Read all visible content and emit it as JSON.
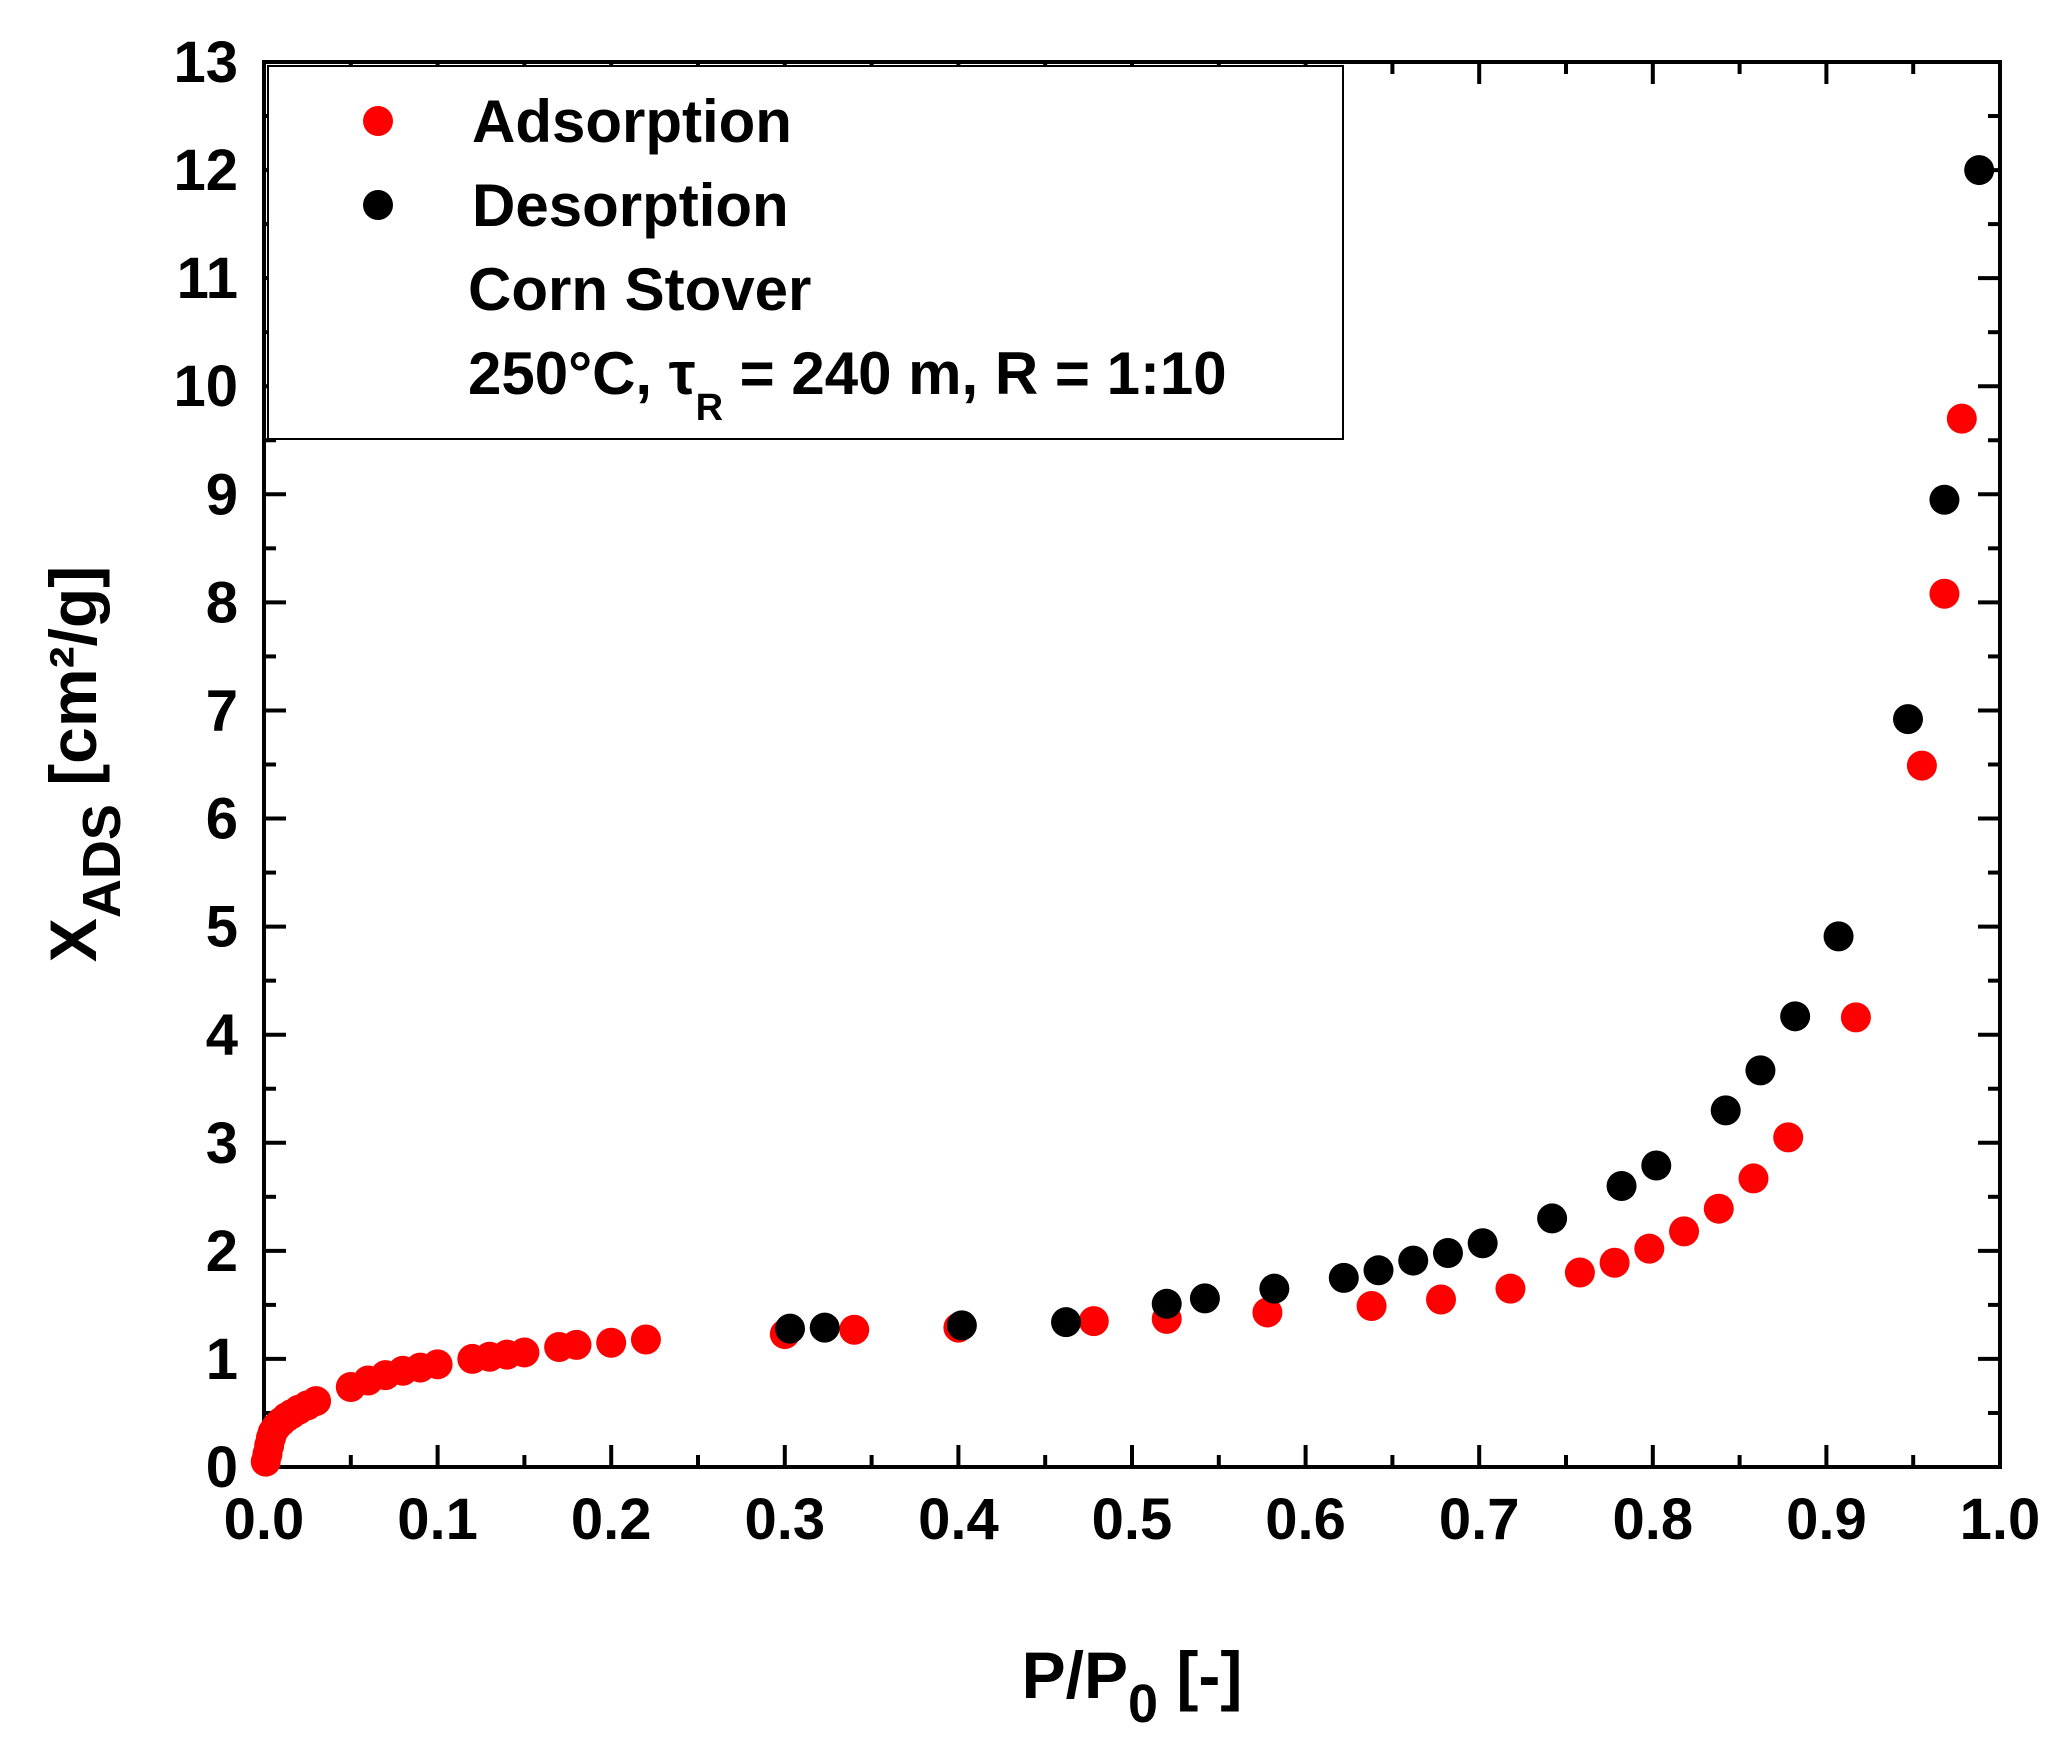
{
  "chart_data": {
    "type": "scatter",
    "title": "",
    "xlabel": {
      "main": "P/P",
      "sub": "0",
      "suffix": " [-]"
    },
    "ylabel": {
      "main": "X",
      "sub": "ADS",
      "suffix": " [cm²/g]"
    },
    "xlim": [
      0.0,
      1.0
    ],
    "ylim": [
      0,
      13
    ],
    "x_ticks": [
      0.0,
      0.1,
      0.2,
      0.3,
      0.4,
      0.5,
      0.6,
      0.7,
      0.8,
      0.9,
      1.0
    ],
    "x_tick_labels": [
      "0.0",
      "0.1",
      "0.2",
      "0.3",
      "0.4",
      "0.5",
      "0.6",
      "0.7",
      "0.8",
      "0.9",
      "1.0"
    ],
    "y_ticks": [
      0,
      1,
      2,
      3,
      4,
      5,
      6,
      7,
      8,
      9,
      10,
      11,
      12,
      13
    ],
    "y_tick_labels": [
      "0",
      "1",
      "2",
      "3",
      "4",
      "5",
      "6",
      "7",
      "8",
      "9",
      "10",
      "11",
      "12",
      "13"
    ],
    "grid": false,
    "legend_position": "top-left",
    "legend": {
      "entries": [
        "Adsorption",
        "Desorption"
      ],
      "note_line1": "Corn Stover",
      "note_line2_a": "250°C, τ",
      "note_line2_sub": "R",
      "note_line2_b": " = 240 m,  R = 1:10"
    },
    "series": [
      {
        "name": "Adsorption",
        "color": "#ff0000",
        "points": [
          [
            0.001,
            0.05
          ],
          [
            0.002,
            0.12
          ],
          [
            0.003,
            0.2
          ],
          [
            0.004,
            0.27
          ],
          [
            0.005,
            0.32
          ],
          [
            0.007,
            0.37
          ],
          [
            0.01,
            0.42
          ],
          [
            0.013,
            0.46
          ],
          [
            0.016,
            0.49
          ],
          [
            0.02,
            0.53
          ],
          [
            0.025,
            0.57
          ],
          [
            0.03,
            0.61
          ],
          [
            0.05,
            0.74
          ],
          [
            0.06,
            0.8
          ],
          [
            0.07,
            0.85
          ],
          [
            0.08,
            0.89
          ],
          [
            0.09,
            0.92
          ],
          [
            0.1,
            0.95
          ],
          [
            0.12,
            1.0
          ],
          [
            0.13,
            1.02
          ],
          [
            0.14,
            1.04
          ],
          [
            0.15,
            1.06
          ],
          [
            0.17,
            1.11
          ],
          [
            0.18,
            1.13
          ],
          [
            0.2,
            1.15
          ],
          [
            0.22,
            1.18
          ],
          [
            0.3,
            1.23
          ],
          [
            0.34,
            1.27
          ],
          [
            0.4,
            1.29
          ],
          [
            0.478,
            1.35
          ],
          [
            0.52,
            1.37
          ],
          [
            0.578,
            1.43
          ],
          [
            0.638,
            1.49
          ],
          [
            0.678,
            1.55
          ],
          [
            0.718,
            1.65
          ],
          [
            0.758,
            1.8
          ],
          [
            0.778,
            1.89
          ],
          [
            0.798,
            2.02
          ],
          [
            0.818,
            2.18
          ],
          [
            0.838,
            2.39
          ],
          [
            0.858,
            2.67
          ],
          [
            0.878,
            3.05
          ],
          [
            0.917,
            4.16
          ],
          [
            0.955,
            6.49
          ],
          [
            0.968,
            8.08
          ],
          [
            0.978,
            9.7
          ]
        ]
      },
      {
        "name": "Desorption",
        "color": "#000000",
        "points": [
          [
            0.303,
            1.28
          ],
          [
            0.323,
            1.29
          ],
          [
            0.402,
            1.31
          ],
          [
            0.462,
            1.34
          ],
          [
            0.52,
            1.51
          ],
          [
            0.542,
            1.56
          ],
          [
            0.582,
            1.65
          ],
          [
            0.622,
            1.75
          ],
          [
            0.642,
            1.82
          ],
          [
            0.662,
            1.91
          ],
          [
            0.682,
            1.98
          ],
          [
            0.702,
            2.07
          ],
          [
            0.742,
            2.3
          ],
          [
            0.782,
            2.6
          ],
          [
            0.802,
            2.79
          ],
          [
            0.842,
            3.3
          ],
          [
            0.862,
            3.67
          ],
          [
            0.882,
            4.17
          ],
          [
            0.907,
            4.91
          ],
          [
            0.947,
            6.92
          ],
          [
            0.968,
            8.95
          ],
          [
            0.988,
            12.0
          ]
        ]
      }
    ]
  }
}
